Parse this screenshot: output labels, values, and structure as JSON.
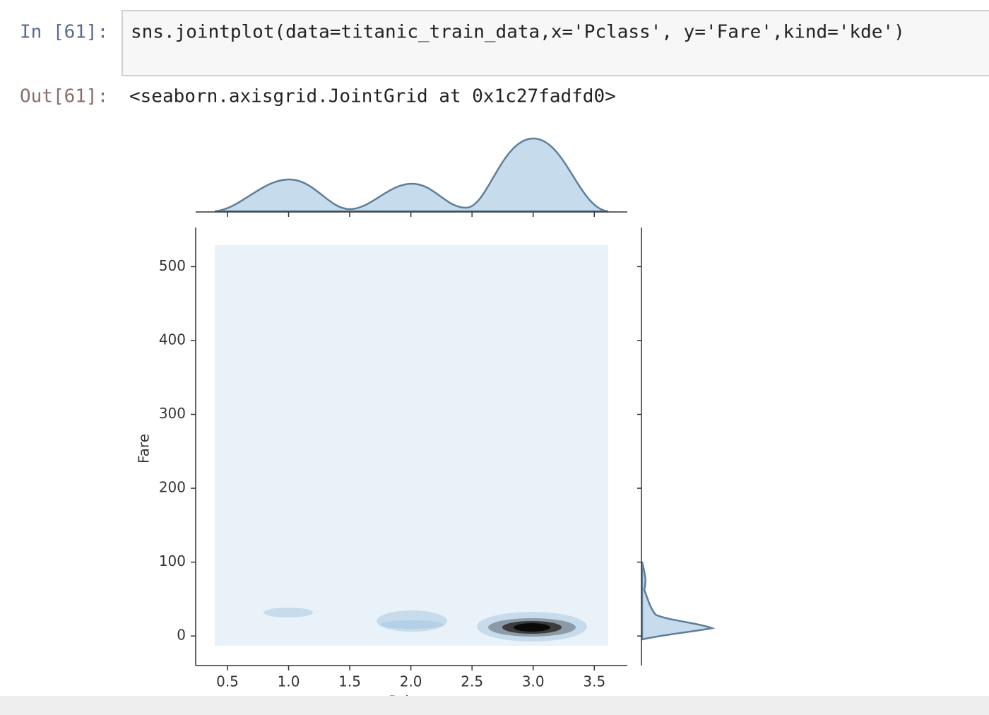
{
  "input": {
    "prompt": "In [61]:",
    "code": "sns.jointplot(data=titanic_train_data,x='Pclass', y='Fare',kind='kde')"
  },
  "output": {
    "prompt": "Out[61]:",
    "text": "<seaborn.axisgrid.JointGrid at 0x1c27fadfd0>"
  },
  "chart_data": {
    "type": "kde",
    "xlabel": "Pclass",
    "ylabel": "Fare",
    "xlim": [
      0.24,
      3.77
    ],
    "ylim": [
      -40,
      553
    ],
    "xticks": [
      0.5,
      {
        "value": 1,
        "label": "1.0"
      },
      1.5,
      {
        "value": 2,
        "label": "2.0"
      },
      2.5,
      {
        "value": 3,
        "label": "3.0"
      },
      3.5
    ],
    "yticks": [
      0,
      100,
      200,
      300,
      400,
      500
    ]
  }
}
